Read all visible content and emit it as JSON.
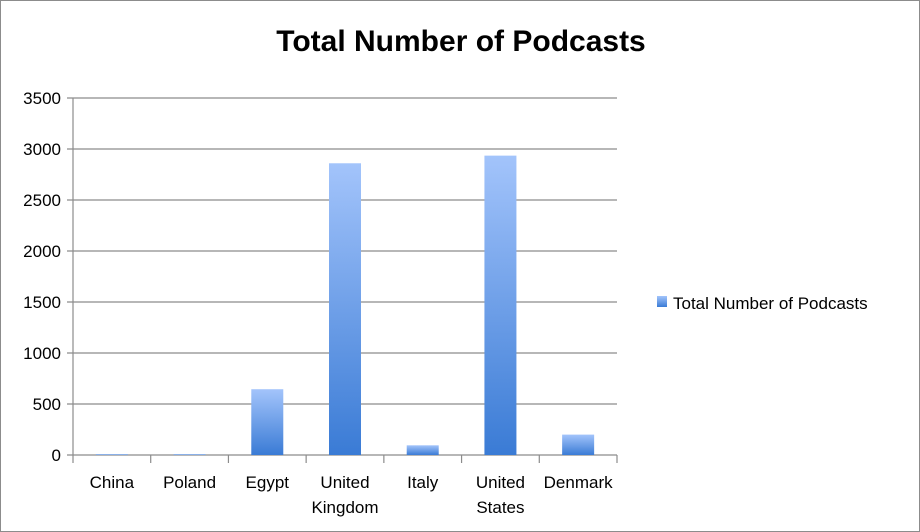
{
  "chart_data": {
    "type": "bar",
    "title": "Total Number of Podcasts",
    "xlabel": "",
    "ylabel": "",
    "categories": [
      "China",
      "Poland",
      "Egypt",
      "United Kingdom",
      "Italy",
      "United States",
      "Denmark"
    ],
    "category_lines": [
      [
        "China"
      ],
      [
        "Poland"
      ],
      [
        "Egypt"
      ],
      [
        "United",
        "Kingdom"
      ],
      [
        "Italy"
      ],
      [
        "United",
        "States"
      ],
      [
        "Denmark"
      ]
    ],
    "series": [
      {
        "name": "Total Number of Podcasts",
        "values": [
          3,
          2,
          645,
          2860,
          95,
          2935,
          200
        ]
      }
    ],
    "ylim": [
      0,
      3500
    ],
    "yticks": [
      "0",
      "500",
      "1000",
      "1500",
      "2000",
      "2500",
      "3000",
      "3500"
    ],
    "grid": true,
    "legend_position": "right",
    "colors": {
      "bar_light": "#a3c4fb",
      "bar_dark": "#3a7bd5",
      "grid": "#8c8c8c",
      "axis": "#8c8c8c"
    }
  }
}
